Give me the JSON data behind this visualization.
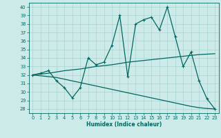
{
  "xlabel": "Humidex (Indice chaleur)",
  "background_color": "#cceae8",
  "grid_color": "#aad4d0",
  "line_color": "#006660",
  "xlim": [
    -0.5,
    23.5
  ],
  "ylim": [
    27.5,
    40.5
  ],
  "yticks": [
    28,
    29,
    30,
    31,
    32,
    33,
    34,
    35,
    36,
    37,
    38,
    39,
    40
  ],
  "xticks": [
    0,
    1,
    2,
    3,
    4,
    5,
    6,
    7,
    8,
    9,
    10,
    11,
    12,
    13,
    14,
    15,
    16,
    17,
    18,
    19,
    20,
    21,
    22,
    23
  ],
  "series1": [
    32.0,
    32.2,
    32.5,
    31.3,
    30.5,
    29.3,
    30.5,
    34.0,
    33.2,
    33.5,
    35.5,
    39.0,
    31.8,
    38.0,
    38.5,
    38.8,
    37.3,
    40.0,
    36.5,
    33.0,
    34.7,
    31.3,
    29.2,
    28.0
  ],
  "series2_slope": [
    32.0,
    32.1,
    32.2,
    32.35,
    32.5,
    32.6,
    32.7,
    32.85,
    33.0,
    33.1,
    33.2,
    33.35,
    33.5,
    33.6,
    33.7,
    33.8,
    33.9,
    34.0,
    34.1,
    34.2,
    34.3,
    34.4,
    34.45,
    34.5
  ],
  "series3_slope": [
    32.0,
    31.9,
    31.8,
    31.7,
    31.5,
    31.3,
    31.1,
    30.9,
    30.7,
    30.5,
    30.3,
    30.1,
    29.9,
    29.7,
    29.5,
    29.3,
    29.1,
    28.9,
    28.7,
    28.5,
    28.3,
    28.15,
    28.05,
    28.0
  ]
}
